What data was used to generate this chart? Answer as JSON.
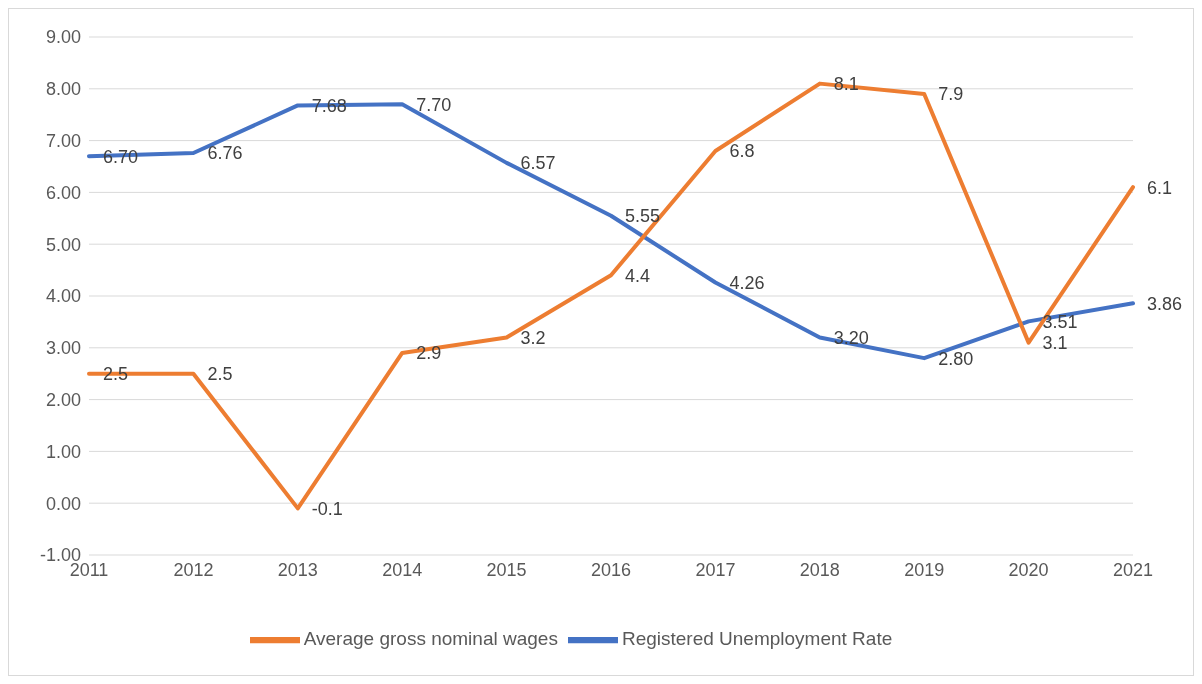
{
  "chart_data": {
    "type": "line",
    "categories": [
      "2011",
      "2012",
      "2013",
      "2014",
      "2015",
      "2016",
      "2017",
      "2018",
      "2019",
      "2020",
      "2021"
    ],
    "series": [
      {
        "name": "Registered Unemployment Rate",
        "color": "#4472c4",
        "values": [
          6.7,
          6.76,
          7.68,
          7.7,
          6.57,
          5.55,
          4.26,
          3.2,
          2.8,
          3.51,
          3.86
        ],
        "value_labels": [
          "6.70",
          "6.76",
          "7.68",
          "7.70",
          "6.57",
          "5.55",
          "4.26",
          "3.20",
          "2.80",
          "3.51",
          "3.86"
        ]
      },
      {
        "name": "Average gross nominal wages",
        "color": "#ed7d31",
        "values": [
          2.5,
          2.5,
          -0.1,
          2.9,
          3.2,
          4.4,
          6.8,
          8.1,
          7.9,
          3.1,
          6.1
        ],
        "value_labels": [
          "2.5",
          "2.5",
          "-0.1",
          "2.9",
          "3.2",
          "4.4",
          "6.8",
          "8.1",
          "7.9",
          "3.1",
          "6.1"
        ]
      }
    ],
    "ylim": [
      -1,
      9
    ],
    "yticks": [
      {
        "value": -1,
        "label": "-1.00"
      },
      {
        "value": 0,
        "label": "0.00"
      },
      {
        "value": 1,
        "label": "1.00"
      },
      {
        "value": 2,
        "label": "2.00"
      },
      {
        "value": 3,
        "label": "3.00"
      },
      {
        "value": 4,
        "label": "4.00"
      },
      {
        "value": 5,
        "label": "5.00"
      },
      {
        "value": 6,
        "label": "6.00"
      },
      {
        "value": 7,
        "label": "7.00"
      },
      {
        "value": 8,
        "label": "8.00"
      },
      {
        "value": 9,
        "label": "9.00"
      }
    ],
    "grid": "y",
    "legend": "bottom",
    "marker": "none",
    "line_style": "solid"
  }
}
